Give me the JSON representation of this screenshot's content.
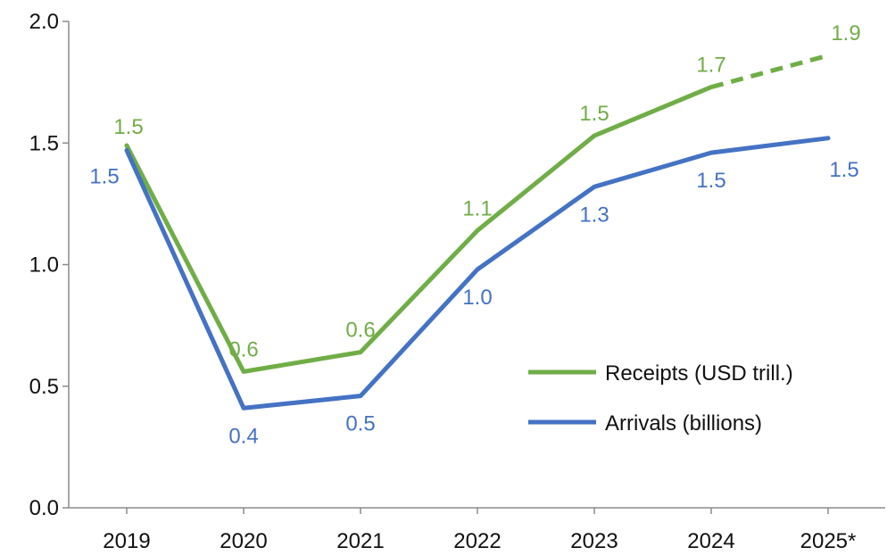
{
  "chart_data": {
    "type": "line",
    "categories": [
      "2019",
      "2020",
      "2021",
      "2022",
      "2023",
      "2024",
      "2025*"
    ],
    "ylim": [
      0,
      2.0
    ],
    "yticks": [
      "0.0",
      "0.5",
      "1.0",
      "1.5",
      "2.0"
    ],
    "ytick_values": [
      0,
      0.5,
      1.0,
      1.5,
      2.0
    ],
    "grid": false,
    "legend_position": "bottom-right",
    "series": [
      {
        "name": "Receipts (USD trill.)",
        "color": "#70ad47",
        "values": [
          1.49,
          0.56,
          0.64,
          1.14,
          1.53,
          1.73,
          1.86
        ],
        "labels": [
          "1.5",
          "0.6",
          "0.6",
          "1.1",
          "1.5",
          "1.7",
          "1.9"
        ],
        "dashed_from_index": 5,
        "label_placement": "above"
      },
      {
        "name": "Arrivals (billions)",
        "color": "#4472c4",
        "values": [
          1.47,
          0.41,
          0.46,
          0.98,
          1.32,
          1.46,
          1.52
        ],
        "labels": [
          "1.5",
          "0.4",
          "0.5",
          "1.0",
          "1.3",
          "1.5",
          "1.5"
        ],
        "dashed_from_index": null,
        "label_placement": "below"
      }
    ]
  }
}
